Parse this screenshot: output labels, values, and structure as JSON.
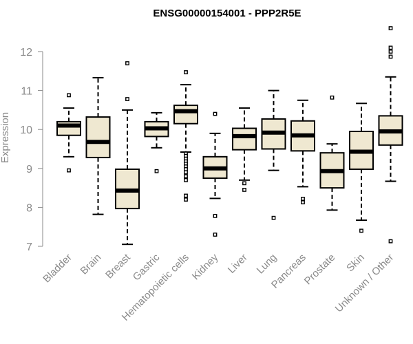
{
  "chart_data": {
    "type": "box",
    "title": "ENSG00000154001 - PPP2R5E",
    "xlabel": "",
    "ylabel": "Expression",
    "ylim": [
      7,
      12.5
    ],
    "yticks": [
      7,
      8,
      9,
      10,
      11,
      12
    ],
    "ytick_labels": [
      "7",
      "8",
      "9",
      "10",
      "11",
      "12"
    ],
    "grid": false,
    "colors": {
      "box_fill": "#efe8d1",
      "box_stroke": "#000000",
      "axis": "#8a8a8a"
    },
    "categories": [
      "Bladder",
      "Brain",
      "Breast",
      "Gastric",
      "Hematopoietic cells",
      "Kidney",
      "Liver",
      "Lung",
      "Pancreas",
      "Prostate",
      "Skin",
      "Unknown / Other"
    ],
    "boxes": [
      {
        "category": "Bladder",
        "whisker_low": 9.3,
        "q1": 9.85,
        "median": 10.1,
        "q3": 10.2,
        "whisker_high": 10.55,
        "outliers": [
          10.88,
          8.95
        ]
      },
      {
        "category": "Brain",
        "whisker_low": 7.82,
        "q1": 9.28,
        "median": 9.68,
        "q3": 10.32,
        "whisker_high": 11.33,
        "outliers": []
      },
      {
        "category": "Breast",
        "whisker_low": 7.05,
        "q1": 7.97,
        "median": 8.43,
        "q3": 8.98,
        "whisker_high": 10.5,
        "outliers": [
          11.7,
          10.78
        ]
      },
      {
        "category": "Gastric",
        "whisker_low": 9.53,
        "q1": 9.82,
        "median": 10.03,
        "q3": 10.2,
        "whisker_high": 10.43,
        "outliers": [
          8.93
        ]
      },
      {
        "category": "Hematopoietic cells",
        "whisker_low": 9.42,
        "q1": 10.15,
        "median": 10.47,
        "q3": 10.62,
        "whisker_high": 11.15,
        "outliers": [
          11.47,
          9.38,
          9.32,
          9.25,
          9.18,
          9.12,
          9.05,
          8.98,
          8.9,
          8.8,
          8.7,
          8.3,
          8.2
        ]
      },
      {
        "category": "Kidney",
        "whisker_low": 8.23,
        "q1": 8.75,
        "median": 9.0,
        "q3": 9.3,
        "whisker_high": 9.9,
        "outliers": [
          10.4,
          7.78,
          7.3
        ]
      },
      {
        "category": "Liver",
        "whisker_low": 8.7,
        "q1": 9.48,
        "median": 9.83,
        "q3": 10.03,
        "whisker_high": 10.55,
        "outliers": [
          8.62,
          8.45
        ]
      },
      {
        "category": "Lung",
        "whisker_low": 8.95,
        "q1": 9.5,
        "median": 9.92,
        "q3": 10.27,
        "whisker_high": 11.0,
        "outliers": [
          7.73
        ]
      },
      {
        "category": "Pancreas",
        "whisker_low": 8.53,
        "q1": 9.45,
        "median": 9.85,
        "q3": 10.22,
        "whisker_high": 10.75,
        "outliers": [
          8.22,
          8.13
        ]
      },
      {
        "category": "Prostate",
        "whisker_low": 7.93,
        "q1": 8.5,
        "median": 8.93,
        "q3": 9.4,
        "whisker_high": 9.63,
        "outliers": [
          10.82
        ]
      },
      {
        "category": "Skin",
        "whisker_low": 7.67,
        "q1": 8.98,
        "median": 9.43,
        "q3": 9.95,
        "whisker_high": 10.67,
        "outliers": [
          7.4
        ]
      },
      {
        "category": "Unknown / Other",
        "whisker_low": 8.67,
        "q1": 9.6,
        "median": 9.95,
        "q3": 10.35,
        "whisker_high": 11.35,
        "outliers": [
          12.6,
          12.1,
          12.0,
          11.87,
          7.13
        ]
      }
    ]
  }
}
